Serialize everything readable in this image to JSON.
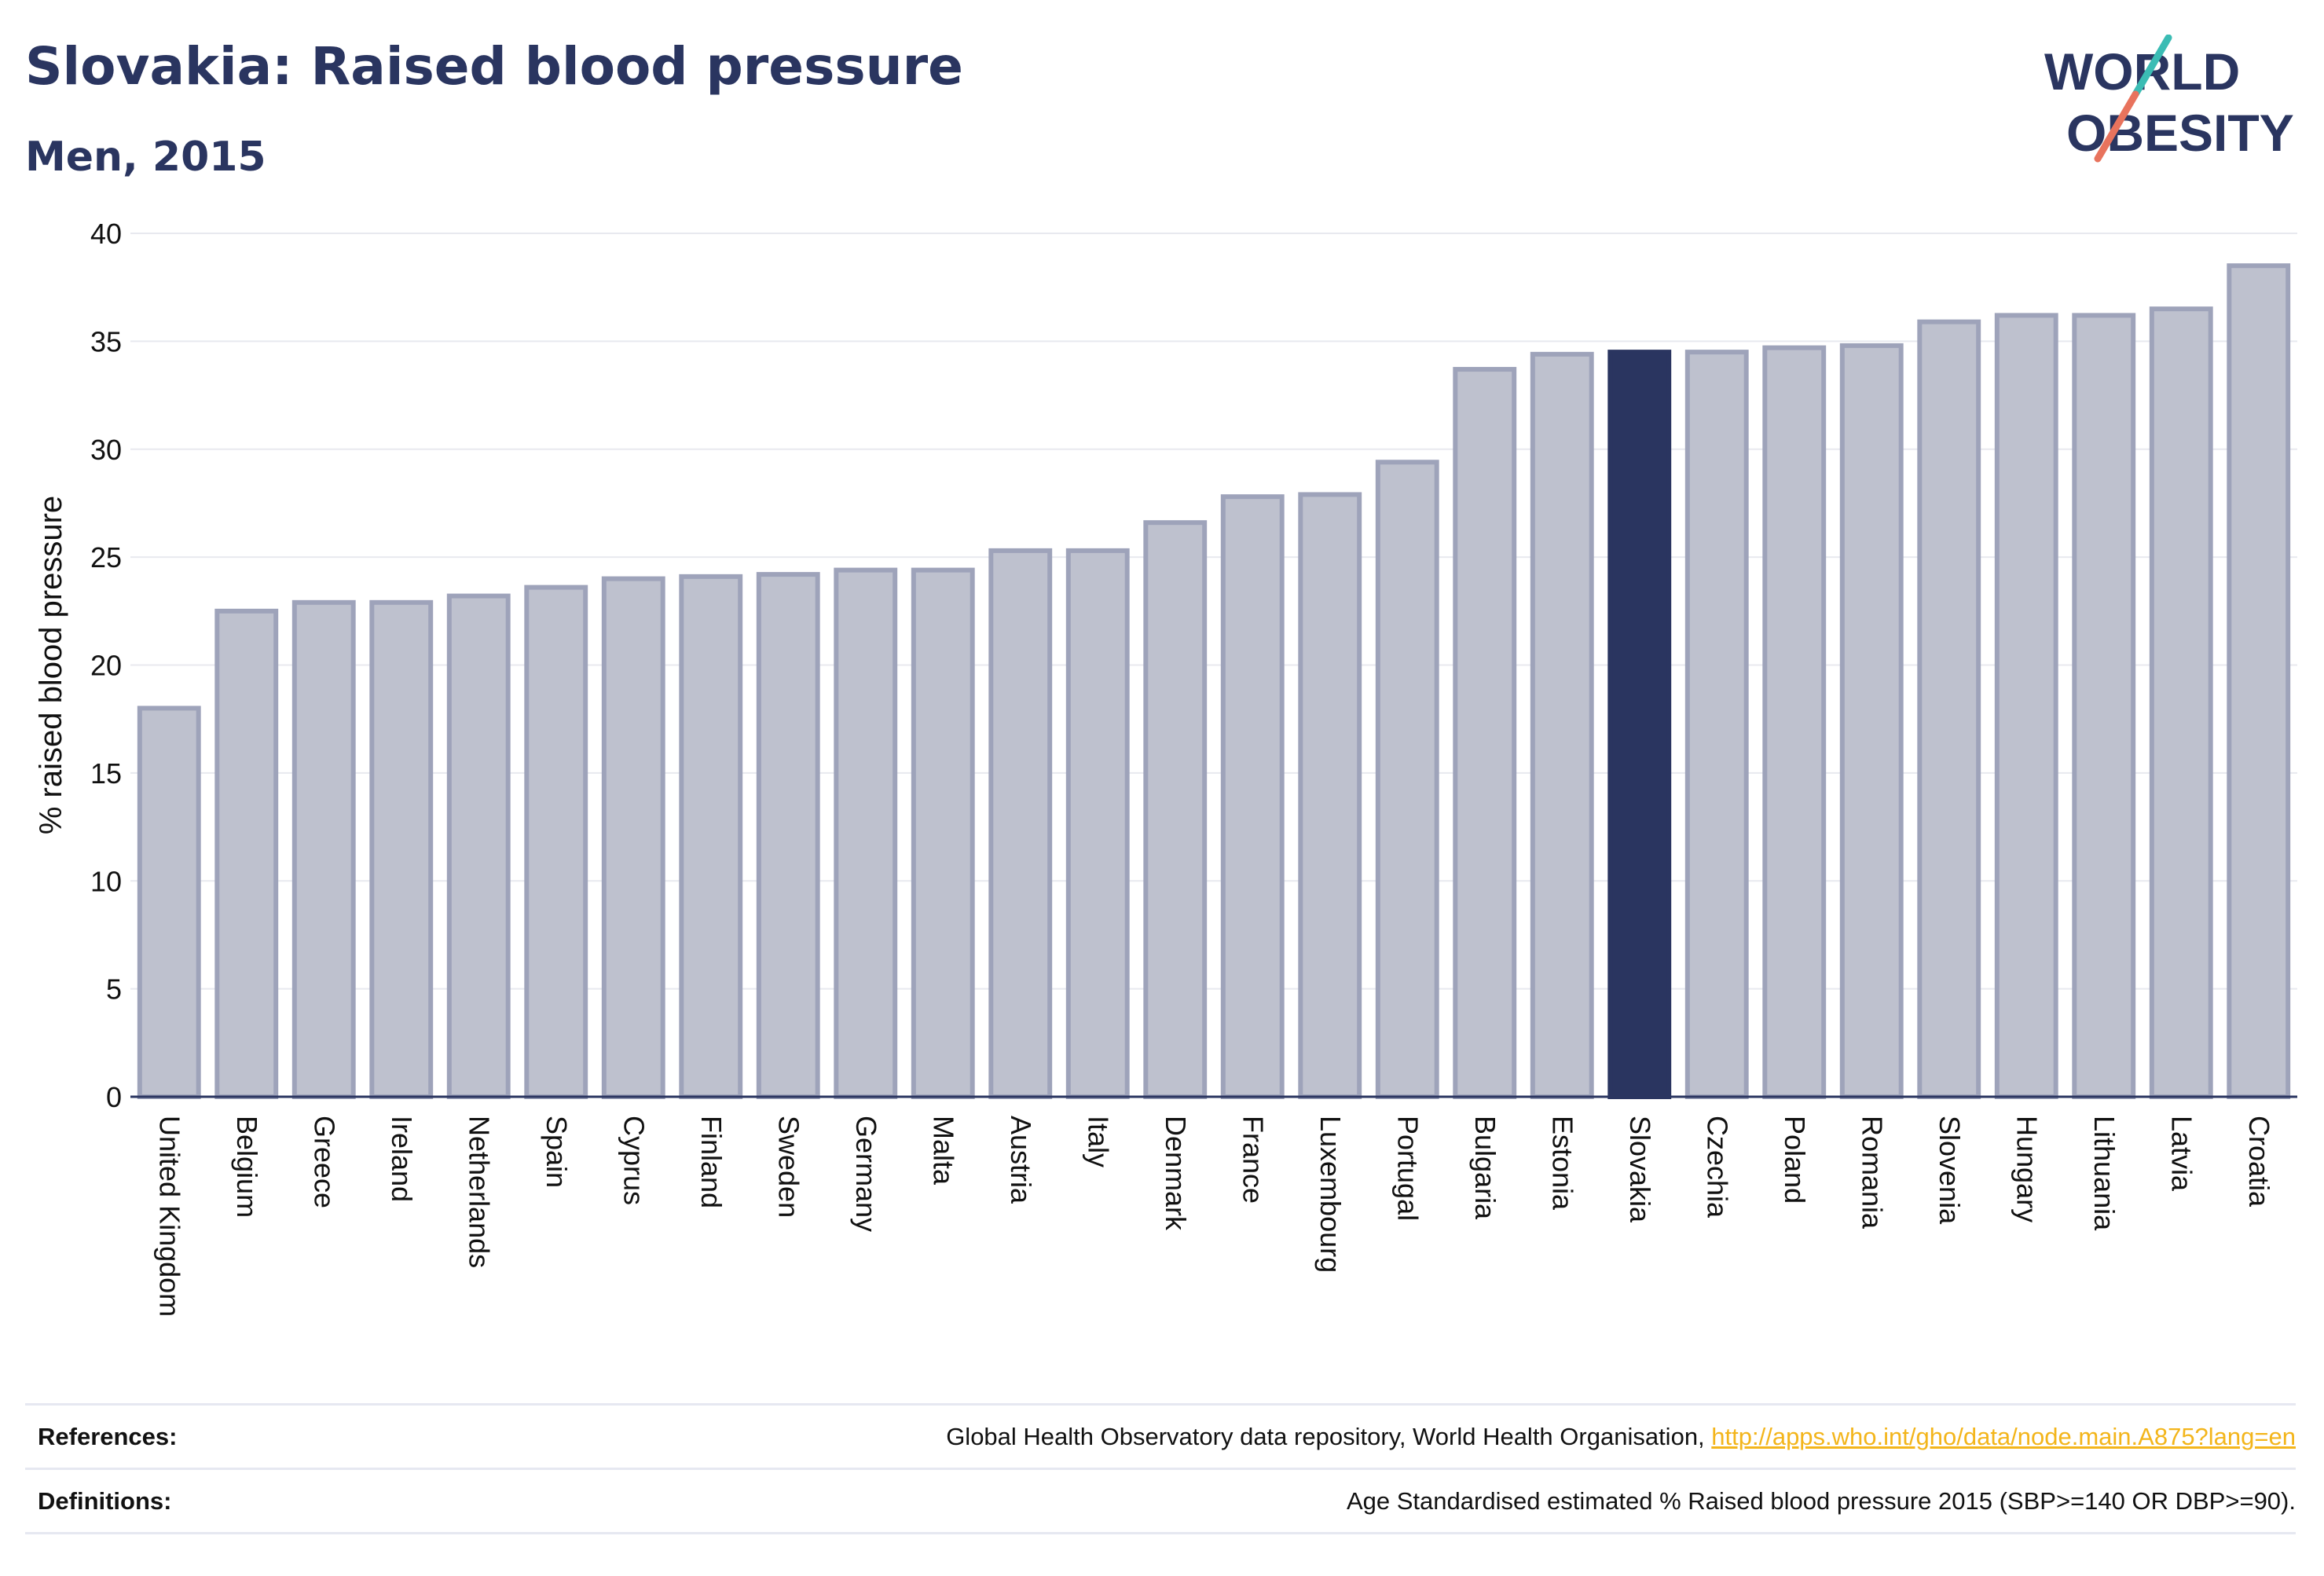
{
  "title": "Slovakia: Raised blood pressure",
  "subtitle": "Men, 2015",
  "logo": {
    "line1": "WORLD",
    "line2": "OBESITY",
    "color": "#2a3560",
    "accent_teal": "#3bbcb4",
    "accent_coral": "#e8735d"
  },
  "colors": {
    "highlight": "#2a3560",
    "bar_fill": "#bec1ce",
    "bar_stroke": "#9ea3ba",
    "grid": "#e8e9ef",
    "axis": "#2a3560"
  },
  "chart_data": {
    "type": "bar",
    "ylabel": "% raised blood pressure",
    "xlabel": "",
    "ylim": [
      0,
      40
    ],
    "yticks": [
      0,
      5,
      10,
      15,
      20,
      25,
      30,
      35,
      40
    ],
    "grid": true,
    "highlight": "Slovakia",
    "categories": [
      "United Kingdom",
      "Belgium",
      "Greece",
      "Ireland",
      "Netherlands",
      "Spain",
      "Cyprus",
      "Finland",
      "Sweden",
      "Germany",
      "Malta",
      "Austria",
      "Italy",
      "Denmark",
      "France",
      "Luxembourg",
      "Portugal",
      "Bulgaria",
      "Estonia",
      "Slovakia",
      "Czechia",
      "Poland",
      "Romania",
      "Slovenia",
      "Hungary",
      "Lithuania",
      "Latvia",
      "Croatia"
    ],
    "values": [
      18.0,
      22.5,
      22.9,
      22.9,
      23.2,
      23.6,
      24.0,
      24.1,
      24.2,
      24.4,
      24.4,
      25.3,
      25.3,
      26.6,
      27.8,
      27.9,
      29.4,
      33.7,
      34.4,
      34.5,
      34.5,
      34.7,
      34.8,
      35.9,
      36.2,
      36.2,
      36.5,
      38.5
    ]
  },
  "footer": {
    "references_label": "References:",
    "references_text": "Global Health Observatory data repository, World Health Organisation, ",
    "references_link": "http://apps.who.int/gho/data/node.main.A875?lang=en",
    "definitions_label": "Definitions:",
    "definitions_text": "Age Standardised estimated % Raised blood pressure 2015 (SBP>=140 OR DBP>=90)."
  }
}
